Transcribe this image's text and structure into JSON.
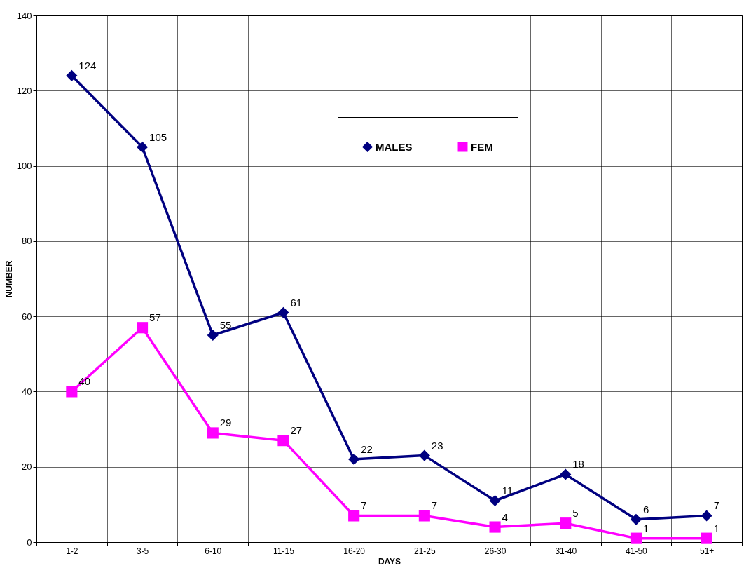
{
  "chart_data": {
    "type": "line",
    "xlabel": "DAYS",
    "ylabel": "NUMBER",
    "categories": [
      "1-2",
      "3-5",
      "6-10",
      "11-15",
      "16-20",
      "21-25",
      "26-30",
      "31-40",
      "41-50",
      "51+"
    ],
    "series": [
      {
        "name": "MALES",
        "color": "#000080",
        "marker": "diamond",
        "values": [
          124,
          105,
          55,
          61,
          22,
          23,
          11,
          18,
          6,
          7
        ]
      },
      {
        "name": "FEM",
        "color": "#ff00ff",
        "marker": "square",
        "values": [
          40,
          57,
          29,
          27,
          7,
          7,
          4,
          5,
          1,
          1
        ]
      }
    ],
    "ylim": [
      0,
      140
    ],
    "yticks": [
      0,
      20,
      40,
      60,
      80,
      100,
      120,
      140
    ],
    "grid": true,
    "legend": "top right",
    "data_labels": true,
    "line_style": "solid"
  }
}
